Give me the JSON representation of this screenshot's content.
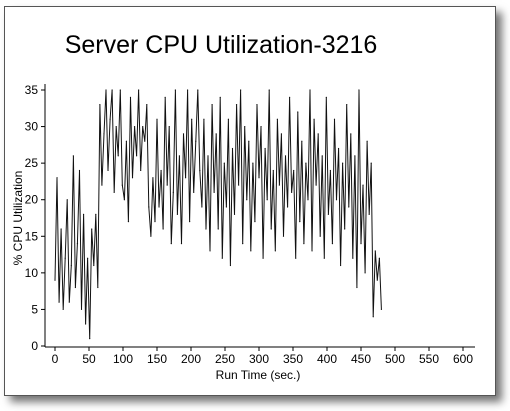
{
  "chart_data": {
    "type": "line",
    "title": "Server CPU Utilization-3216",
    "xlabel": "Run Time (sec.)",
    "ylabel": "% CPU Utilization",
    "xlim": [
      0,
      600
    ],
    "ylim": [
      0,
      35
    ],
    "xticks": [
      0,
      50,
      100,
      150,
      200,
      250,
      300,
      350,
      400,
      450,
      500,
      550,
      600
    ],
    "yticks": [
      0,
      5,
      10,
      15,
      20,
      25,
      30,
      35
    ],
    "grid": false,
    "legend": "none",
    "line_color": "#111111",
    "series": [
      {
        "x": [
          0,
          3,
          6,
          9,
          12,
          15,
          18,
          21,
          24,
          27,
          30,
          33,
          36,
          39,
          42,
          45,
          48,
          51,
          54,
          57,
          60,
          63,
          66,
          69,
          72,
          75,
          78,
          81,
          84,
          87,
          90,
          93,
          96,
          99,
          102,
          105,
          108,
          111,
          114,
          117,
          120,
          123,
          126,
          129,
          132,
          135,
          138,
          141,
          144,
          147,
          150,
          153,
          156,
          159,
          162,
          165,
          168,
          171,
          174,
          177,
          180,
          183,
          186,
          189,
          192,
          195,
          198,
          201,
          204,
          207,
          210,
          213,
          216,
          219,
          222,
          225,
          228,
          231,
          234,
          237,
          240,
          243,
          246,
          249,
          252,
          255,
          258,
          261,
          264,
          267,
          270,
          273,
          276,
          279,
          282,
          285,
          288,
          291,
          294,
          297,
          300,
          303,
          306,
          309,
          312,
          315,
          318,
          321,
          324,
          327,
          330,
          333,
          336,
          339,
          342,
          345,
          348,
          351,
          354,
          357,
          360,
          363,
          366,
          369,
          372,
          375,
          378,
          381,
          384,
          387,
          390,
          393,
          396,
          399,
          402,
          405,
          408,
          411,
          414,
          417,
          420,
          423,
          426,
          429,
          432,
          435,
          438,
          441,
          444,
          447,
          450,
          453,
          456,
          459,
          462,
          465,
          468,
          471,
          474,
          477,
          480
        ],
        "values": [
          9,
          23,
          6,
          16,
          5,
          12,
          20,
          6,
          11,
          26,
          8,
          14,
          24,
          5,
          18,
          3,
          12,
          1,
          16,
          11,
          18,
          8,
          33,
          22,
          29,
          35,
          24,
          31,
          35,
          21,
          30,
          26,
          35,
          22,
          20,
          28,
          17,
          34,
          23,
          30,
          26,
          35,
          24,
          30,
          28,
          33,
          19,
          15,
          23,
          17,
          31,
          19,
          24,
          16,
          34,
          22,
          30,
          14,
          21,
          35,
          18,
          26,
          14,
          29,
          23,
          35,
          17,
          31,
          21,
          28,
          35,
          24,
          19,
          31,
          16,
          26,
          13,
          33,
          21,
          29,
          16,
          34,
          12,
          25,
          19,
          31,
          11,
          27,
          18,
          33,
          22,
          35,
          14,
          30,
          20,
          28,
          13,
          25,
          17,
          33,
          23,
          30,
          12,
          27,
          20,
          35,
          16,
          24,
          13,
          31,
          22,
          29,
          15,
          26,
          19,
          34,
          21,
          24,
          12,
          32,
          17,
          28,
          14,
          25,
          20,
          35,
          13,
          31,
          22,
          29,
          15,
          26,
          12,
          34,
          18,
          24,
          14,
          31,
          20,
          27,
          11,
          25,
          16,
          33,
          19,
          29,
          12,
          26,
          8,
          35,
          14,
          22,
          10,
          28,
          18,
          25,
          4,
          13,
          9,
          12,
          5
        ]
      }
    ]
  }
}
